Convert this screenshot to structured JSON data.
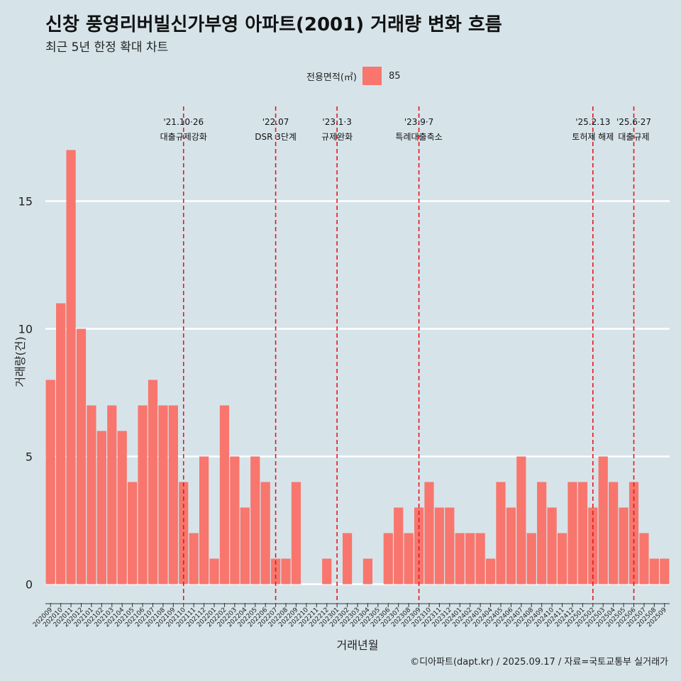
{
  "title": "신창 풍영리버빌신가부영 아파트(2001) 거래량 변화 흐름",
  "subtitle": "최근 5년 한정 확대 차트",
  "caption": "©디아파트(dapt.kr) / 2025.09.17 / 자료=국토교통부 실거래가",
  "legend": {
    "title": "전용면적(㎡)",
    "label": "85",
    "color": "#f8766d"
  },
  "chart_data": {
    "type": "bar",
    "xlabel": "거래년월",
    "ylabel": "거래량(건)",
    "ylim": [
      0,
      17.5
    ],
    "yticks": [
      0,
      5,
      10,
      15
    ],
    "grid": true,
    "legend_position": "top",
    "categories": [
      "202009",
      "202010",
      "202011",
      "202012",
      "202101",
      "202102",
      "202103",
      "202104",
      "202105",
      "202106",
      "202107",
      "202108",
      "202109",
      "202110",
      "202111",
      "202112",
      "202201",
      "202202",
      "202203",
      "202204",
      "202205",
      "202206",
      "202207",
      "202208",
      "202209",
      "202210",
      "202211",
      "202212",
      "202301",
      "202302",
      "202303",
      "202304",
      "202305",
      "202306",
      "202307",
      "202308",
      "202309",
      "202310",
      "202311",
      "202312",
      "202401",
      "202402",
      "202403",
      "202404",
      "202405",
      "202406",
      "202407",
      "202408",
      "202409",
      "202410",
      "202411",
      "202412",
      "202501",
      "202502",
      "202503",
      "202504",
      "202505",
      "202506",
      "202507",
      "202508",
      "202509"
    ],
    "series": [
      {
        "name": "85",
        "values": [
          8,
          11,
          17,
          10,
          7,
          6,
          7,
          6,
          4,
          7,
          8,
          7,
          7,
          4,
          2,
          5,
          1,
          7,
          5,
          3,
          5,
          4,
          1,
          1,
          4,
          0,
          0,
          1,
          0,
          2,
          0,
          1,
          0,
          2,
          3,
          2,
          3,
          4,
          3,
          3,
          2,
          2,
          2,
          1,
          4,
          3,
          5,
          2,
          4,
          3,
          2,
          4,
          4,
          3,
          5,
          4,
          3,
          4,
          2,
          1,
          1
        ]
      }
    ],
    "annotations": [
      {
        "category": "202110",
        "date": "'21.10·26",
        "label": "대출규제강화"
      },
      {
        "category": "202207",
        "date": "'22.07",
        "label": "DSR 3단계"
      },
      {
        "category": "202301",
        "date": "'23.1·3",
        "label": "규제완화"
      },
      {
        "category": "202309",
        "date": "'23.9·7",
        "label": "특례대출축소"
      },
      {
        "category": "202502",
        "date": "'25.2.13",
        "label": "토허제 해제"
      },
      {
        "category": "202506",
        "date": "'25.6·27",
        "label": "대출규제"
      }
    ]
  }
}
